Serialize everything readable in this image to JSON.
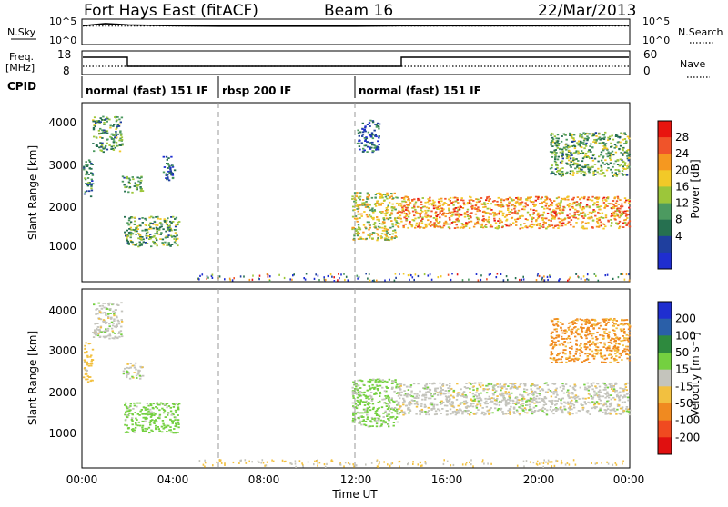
{
  "header": {
    "title": "Fort Hays East (fitACF)",
    "beam": "Beam 16",
    "date": "22/Mar/2013"
  },
  "nsky_panel": {
    "left_label": "N.Sky",
    "left_ticks": [
      "10^5",
      "10^0"
    ],
    "right_ticks": [
      "10^5",
      "10^0"
    ],
    "right_label": "N.Search"
  },
  "freq_panel": {
    "left_label_1": "Freq.",
    "left_label_2": "[MHz]",
    "left_ticks": [
      "18",
      "8"
    ],
    "right_ticks": [
      "60",
      "0"
    ],
    "right_label": "Nave"
  },
  "cpid": {
    "label": "CPID",
    "segments": [
      {
        "text": "normal (fast) 151 IF",
        "start_hour": 0
      },
      {
        "text": "rbsp 200 IF",
        "start_hour": 6
      },
      {
        "text": "normal (fast) 151 IF",
        "start_hour": 12
      }
    ]
  },
  "power_panel": {
    "ylabel": "Slant Range [km]",
    "yticks": [
      "4000",
      "3000",
      "2000",
      "1000"
    ],
    "colorbar_label": "Power [dB]",
    "colorbar_ticks": [
      "28",
      "24",
      "20",
      "16",
      "12",
      "8",
      "4"
    ],
    "colorbar_colors": [
      "#e8150f",
      "#f0542a",
      "#f59820",
      "#f2c928",
      "#9cc63a",
      "#4c9a60",
      "#267050",
      "#1f3f9e",
      "#1f2ed0"
    ]
  },
  "velocity_panel": {
    "ylabel": "Slant Range [km]",
    "yticks": [
      "4000",
      "3000",
      "2000",
      "1000"
    ],
    "colorbar_label": "Velocity [m s⁻¹]",
    "colorbar_ticks": [
      "200",
      "100",
      "50",
      "15",
      "-15",
      "-50",
      "-100",
      "-200"
    ],
    "colorbar_colors": [
      "#1f2ed0",
      "#2a5fa8",
      "#2e8a3e",
      "#74d040",
      "#c4c4bc",
      "#f2c040",
      "#f08a20",
      "#f04a20",
      "#e01010"
    ]
  },
  "x_axis": {
    "label": "Time UT",
    "ticks": [
      "00:00",
      "04:00",
      "08:00",
      "12:00",
      "16:00",
      "20:00",
      "00:00"
    ]
  },
  "chart_data": [
    {
      "type": "line",
      "panel": "N.Sky / N.Search",
      "x_unit": "hour UT",
      "xlim": [
        0,
        24
      ],
      "series": [
        {
          "name": "N.Sky",
          "x": [
            0,
            1,
            2,
            4,
            6,
            8,
            10,
            12,
            14,
            16,
            18,
            20,
            22,
            24
          ],
          "y_log10": [
            4.1,
            4.6,
            4.3,
            4.1,
            4.0,
            4.0,
            4.0,
            4.0,
            4.1,
            4.1,
            4.1,
            4.1,
            4.1,
            4.2
          ]
        },
        {
          "name": "N.Search",
          "x": [
            0,
            24
          ],
          "y_log10": [
            4.0,
            4.0
          ]
        }
      ]
    },
    {
      "type": "line",
      "panel": "Freq. / Nave",
      "xlim": [
        0,
        24
      ],
      "series": [
        {
          "name": "Freq.",
          "x": [
            0,
            1.8,
            1.8,
            13.9,
            13.9,
            24
          ],
          "y": [
            16.5,
            16.5,
            11.5,
            11.5,
            16.5,
            16.5
          ],
          "ylim": [
            8,
            18
          ]
        },
        {
          "name": "Nave",
          "x": [
            0,
            24
          ],
          "y": [
            10,
            10
          ],
          "ylim": [
            0,
            60
          ]
        }
      ]
    },
    {
      "type": "heatmap",
      "panel": "Power [dB]",
      "xlim": [
        0,
        24
      ],
      "ylim": [
        180,
        4600
      ],
      "regions": [
        {
          "t0": 0.0,
          "t1": 0.4,
          "r0": 2300,
          "r1": 3300,
          "value": 8
        },
        {
          "t0": 0.4,
          "t1": 1.7,
          "r0": 3400,
          "r1": 4300,
          "value": 11
        },
        {
          "t0": 1.7,
          "t1": 2.6,
          "r0": 2400,
          "r1": 2800,
          "value": 10
        },
        {
          "t0": 1.8,
          "t1": 4.2,
          "r0": 1050,
          "r1": 1800,
          "value": 12
        },
        {
          "t0": 3.5,
          "t1": 4.0,
          "r0": 2700,
          "r1": 3300,
          "value": 5
        },
        {
          "t0": 11.8,
          "t1": 13.8,
          "r0": 1200,
          "r1": 2400,
          "value": 17
        },
        {
          "t0": 12.0,
          "t1": 13.0,
          "r0": 3400,
          "r1": 4200,
          "value": 5
        },
        {
          "t0": 13.8,
          "t1": 24.0,
          "r0": 1500,
          "r1": 2300,
          "value": 22
        },
        {
          "t0": 20.5,
          "t1": 24.0,
          "r0": 2800,
          "r1": 3900,
          "value": 12
        }
      ]
    },
    {
      "type": "heatmap",
      "panel": "Velocity [m s-1]",
      "xlim": [
        0,
        24
      ],
      "ylim": [
        180,
        4600
      ],
      "regions": [
        {
          "t0": 0.0,
          "t1": 0.4,
          "r0": 2300,
          "r1": 3300,
          "value": -30
        },
        {
          "t0": 0.4,
          "t1": 1.7,
          "r0": 3400,
          "r1": 4300,
          "value": 0
        },
        {
          "t0": 1.7,
          "t1": 2.6,
          "r0": 2400,
          "r1": 2800,
          "value": 0
        },
        {
          "t0": 1.8,
          "t1": 4.2,
          "r0": 1050,
          "r1": 1800,
          "value": 30
        },
        {
          "t0": 11.8,
          "t1": 13.8,
          "r0": 1200,
          "r1": 2400,
          "value": 25
        },
        {
          "t0": 13.8,
          "t1": 24.0,
          "r0": 1500,
          "r1": 2300,
          "value": 0
        },
        {
          "t0": 20.5,
          "t1": 24.0,
          "r0": 2800,
          "r1": 3900,
          "value": -60
        }
      ]
    }
  ]
}
